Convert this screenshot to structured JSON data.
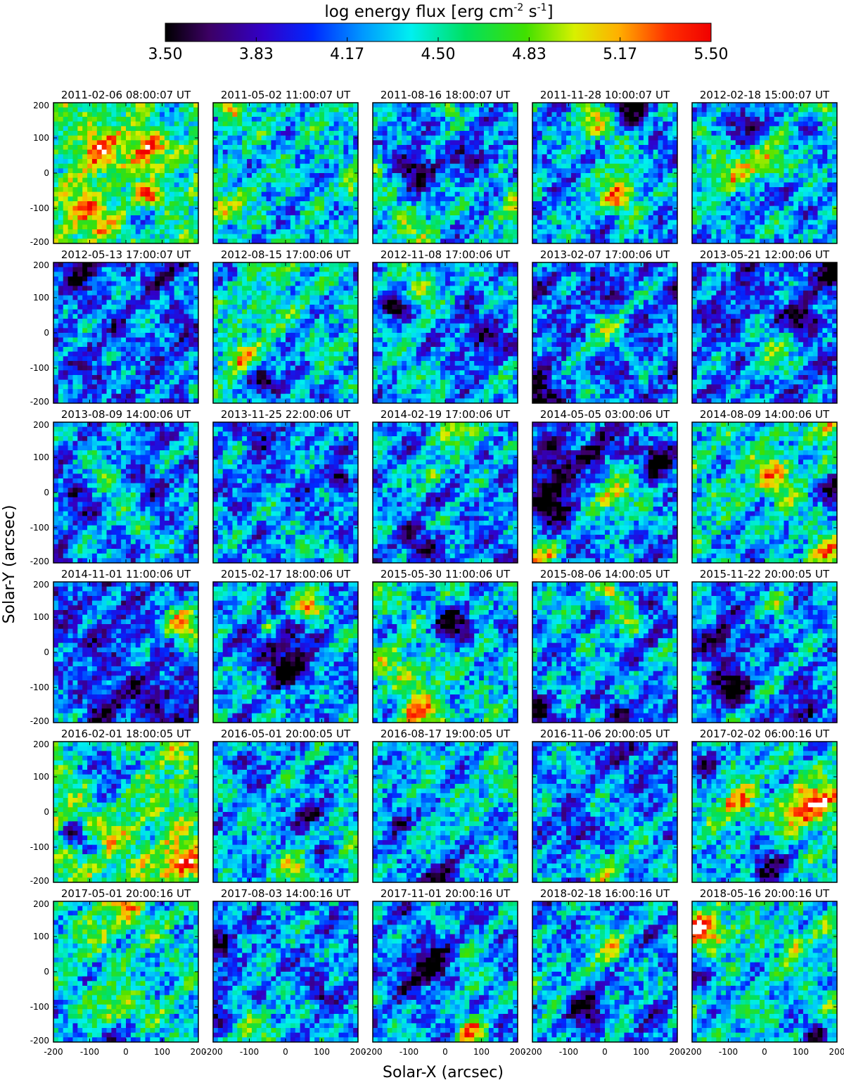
{
  "chart_data": {
    "type": "heatmap",
    "colorbar": {
      "label_parts": [
        "log energy flux ",
        "[erg cm",
        "-2",
        " s",
        "-1",
        "]"
      ],
      "min": 3.5,
      "max": 5.5,
      "ticks": [
        "3.50",
        "3.83",
        "4.17",
        "4.50",
        "4.83",
        "5.17",
        "5.50"
      ],
      "colormap": "rainbow (black-purple-blue-cyan-green-yellow-orange-red), white above max"
    },
    "xlabel": "Solar-X (arcsec)",
    "ylabel": "Solar-Y (arcsec)",
    "xlim": [
      -200,
      200
    ],
    "ylim": [
      -200,
      200
    ],
    "x_tick_labels": [
      "-200",
      "-100",
      "0",
      "100",
      "200"
    ],
    "y_tick_labels": [
      "200",
      "100",
      "0",
      "-100",
      "-200"
    ],
    "layout": "6 rows x 5 columns",
    "panels": [
      {
        "title": "2011-02-06  08:00:07  UT",
        "level": 0.56
      },
      {
        "title": "2011-05-02  11:00:07  UT",
        "level": 0.42
      },
      {
        "title": "2011-08-16  18:00:07  UT",
        "level": 0.36
      },
      {
        "title": "2011-11-28  10:00:07  UT",
        "level": 0.36
      },
      {
        "title": "2012-02-18  15:00:07  UT",
        "level": 0.4
      },
      {
        "title": "2012-05-13  17:00:07  UT",
        "level": 0.32
      },
      {
        "title": "2012-08-15  17:00:06  UT",
        "level": 0.42
      },
      {
        "title": "2012-11-08  17:00:06  UT",
        "level": 0.38
      },
      {
        "title": "2013-02-07  17:00:06  UT",
        "level": 0.3
      },
      {
        "title": "2013-05-21  12:00:06  UT",
        "level": 0.3
      },
      {
        "title": "2013-08-09  14:00:06  UT",
        "level": 0.36
      },
      {
        "title": "2013-11-25  22:00:06  UT",
        "level": 0.34
      },
      {
        "title": "2014-02-19  17:00:06  UT",
        "level": 0.36
      },
      {
        "title": "2014-05-05  03:00:06  UT",
        "level": 0.34
      },
      {
        "title": "2014-08-09  14:00:06  UT",
        "level": 0.46
      },
      {
        "title": "2014-11-01  11:00:06  UT",
        "level": 0.28
      },
      {
        "title": "2015-02-17  18:00:06  UT",
        "level": 0.38
      },
      {
        "title": "2015-05-30  11:00:06  UT",
        "level": 0.44
      },
      {
        "title": "2015-08-06  14:00:05  UT",
        "level": 0.4
      },
      {
        "title": "2015-11-22  20:00:05  UT",
        "level": 0.36
      },
      {
        "title": "2016-02-01  18:00:05  UT",
        "level": 0.58
      },
      {
        "title": "2016-05-01  20:00:05  UT",
        "level": 0.4
      },
      {
        "title": "2016-08-17  19:00:05  UT",
        "level": 0.42
      },
      {
        "title": "2016-11-06  20:00:05  UT",
        "level": 0.38
      },
      {
        "title": "2017-02-02  06:00:16  UT",
        "level": 0.44
      },
      {
        "title": "2017-05-01  20:00:16  UT",
        "level": 0.46
      },
      {
        "title": "2017-08-03  14:00:16  UT",
        "level": 0.36
      },
      {
        "title": "2017-11-01  20:00:16  UT",
        "level": 0.36
      },
      {
        "title": "2018-02-18  16:00:16  UT",
        "level": 0.36
      },
      {
        "title": "2018-05-16  20:00:16  UT",
        "level": 0.46
      }
    ]
  }
}
